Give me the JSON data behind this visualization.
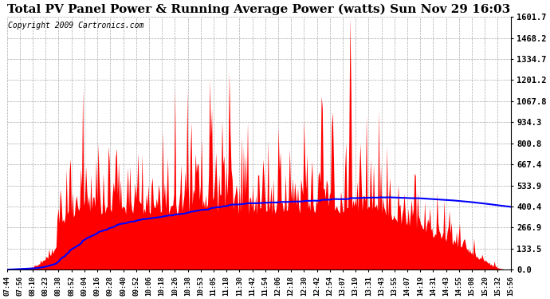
{
  "title": "Total PV Panel Power & Running Average Power (watts) Sun Nov 29 16:03",
  "copyright": "Copyright 2009 Cartronics.com",
  "yticks": [
    0.0,
    133.5,
    266.9,
    400.4,
    533.9,
    667.4,
    800.8,
    934.3,
    1067.8,
    1201.2,
    1334.7,
    1468.2,
    1601.7
  ],
  "ymax": 1601.7,
  "ymin": 0.0,
  "xtick_labels": [
    "07:44",
    "07:56",
    "08:10",
    "08:23",
    "08:38",
    "08:52",
    "09:04",
    "09:16",
    "09:28",
    "09:40",
    "09:52",
    "10:06",
    "10:18",
    "10:26",
    "10:38",
    "10:53",
    "11:05",
    "11:18",
    "11:30",
    "11:42",
    "11:54",
    "12:06",
    "12:18",
    "12:30",
    "12:42",
    "12:54",
    "13:07",
    "13:19",
    "13:31",
    "13:43",
    "13:55",
    "14:07",
    "14:19",
    "14:31",
    "14:43",
    "14:55",
    "15:08",
    "15:20",
    "15:32",
    "15:56"
  ],
  "background_color": "#ffffff",
  "plot_bg_color": "#ffffff",
  "grid_color": "#aaaaaa",
  "bar_color": "#ff0000",
  "line_color": "#0000ff",
  "title_fontsize": 11,
  "copyright_fontsize": 7,
  "figwidth": 6.9,
  "figheight": 3.75,
  "dpi": 100
}
